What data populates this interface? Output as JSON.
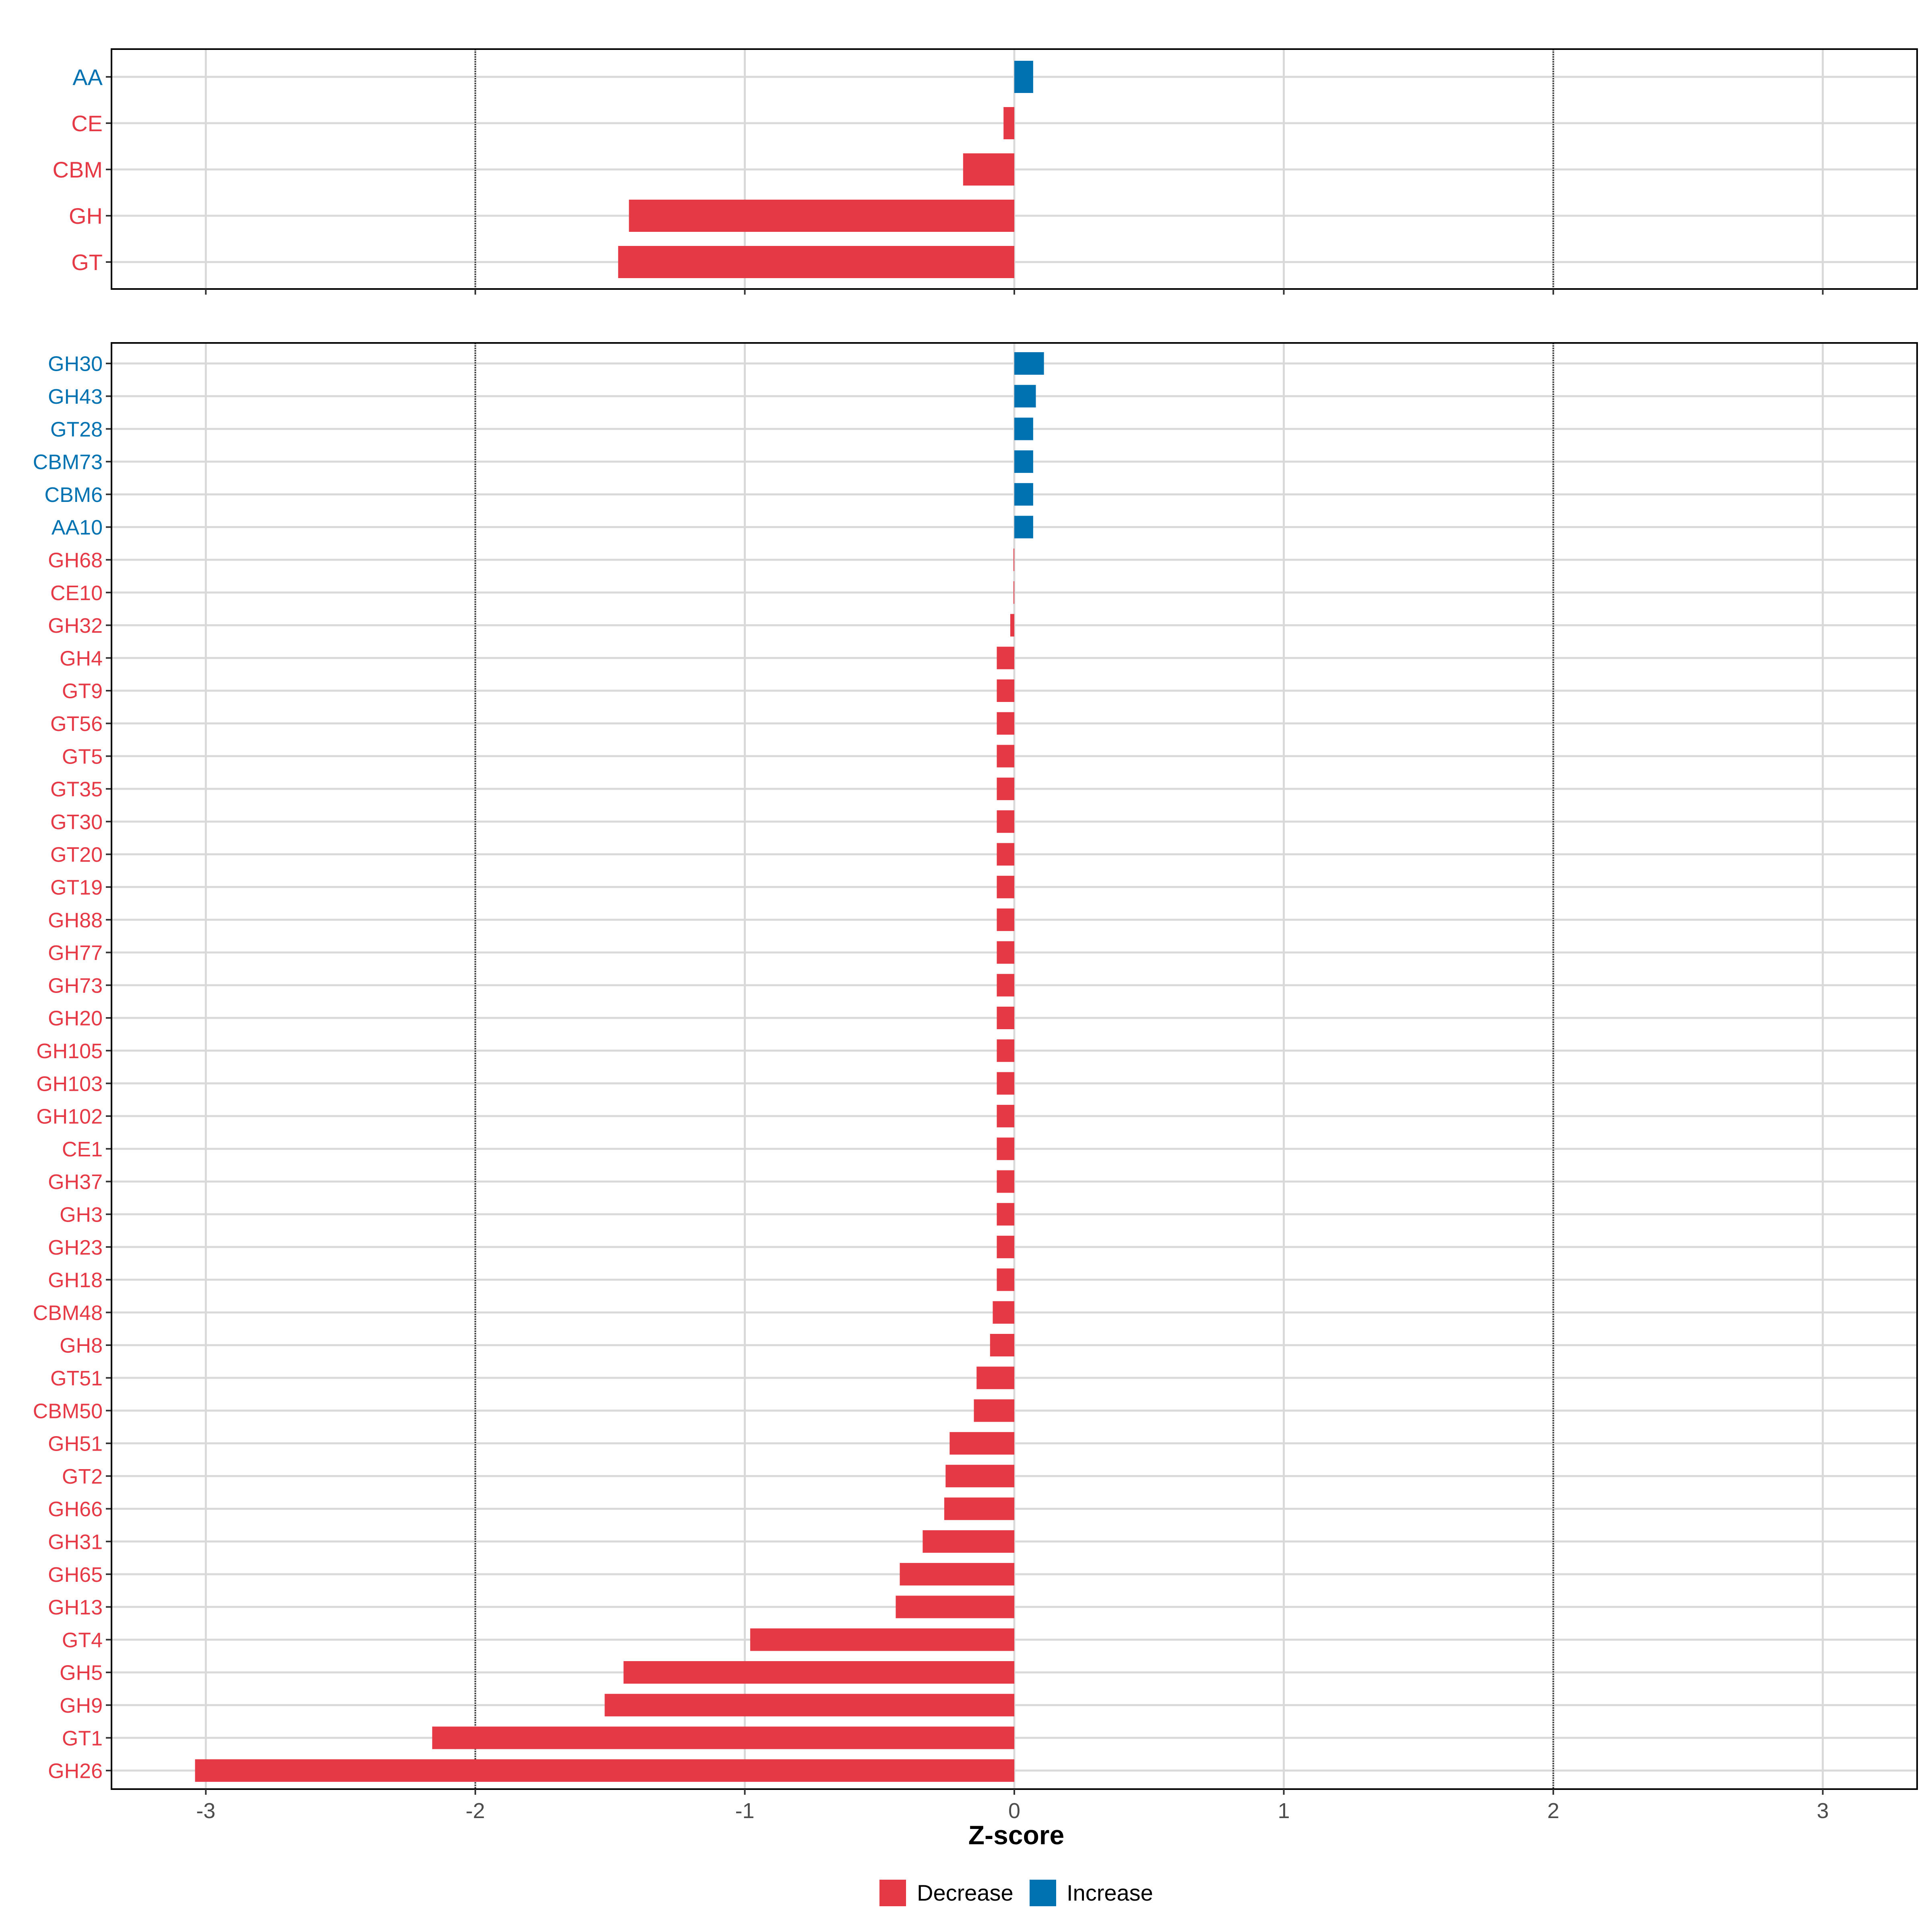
{
  "chart_data": {
    "type": "bar",
    "orientation": "horizontal",
    "xlabel": "Z-score",
    "xlim": [
      -3.35,
      3.35
    ],
    "xticks": [
      -3,
      -2,
      -1,
      0,
      1,
      2,
      3
    ],
    "xtick_labels": [
      "-3",
      "-2",
      "-1",
      "0",
      "1",
      "2",
      "3"
    ],
    "reference_lines": [
      -2,
      2
    ],
    "grid": true,
    "legend": {
      "position": "bottom",
      "entries": [
        {
          "name": "Decrease",
          "color": "#E63946"
        },
        {
          "name": "Increase",
          "color": "#0072B2"
        }
      ]
    },
    "colors": {
      "Decrease": "#E63946",
      "Increase": "#0072B2"
    },
    "panels": [
      {
        "name": "class",
        "categories": [
          "AA",
          "CE",
          "CBM",
          "GH",
          "GT"
        ],
        "values": [
          0.07,
          -0.04,
          -0.19,
          -1.43,
          -1.47
        ],
        "groups": [
          "Increase",
          "Decrease",
          "Decrease",
          "Decrease",
          "Decrease"
        ]
      },
      {
        "name": "family",
        "categories": [
          "GH30",
          "GH43",
          "GT28",
          "CBM73",
          "CBM6",
          "AA10",
          "GH68",
          "CE10",
          "GH32",
          "GH4",
          "GT9",
          "GT56",
          "GT5",
          "GT35",
          "GT30",
          "GT20",
          "GT19",
          "GH88",
          "GH77",
          "GH73",
          "GH20",
          "GH105",
          "GH103",
          "GH102",
          "CE1",
          "GH37",
          "GH3",
          "GH23",
          "GH18",
          "CBM48",
          "GH8",
          "GT51",
          "CBM50",
          "GH51",
          "GT2",
          "GH66",
          "GH31",
          "GH65",
          "GH13",
          "GT4",
          "GH5",
          "GH9",
          "GT1",
          "GH26"
        ],
        "values": [
          0.11,
          0.08,
          0.07,
          0.07,
          0.07,
          0.07,
          -0.003,
          -0.003,
          -0.015,
          -0.065,
          -0.065,
          -0.065,
          -0.065,
          -0.065,
          -0.065,
          -0.065,
          -0.065,
          -0.065,
          -0.065,
          -0.065,
          -0.065,
          -0.065,
          -0.065,
          -0.065,
          -0.065,
          -0.065,
          -0.065,
          -0.065,
          -0.065,
          -0.08,
          -0.09,
          -0.14,
          -0.15,
          -0.24,
          -0.255,
          -0.26,
          -0.34,
          -0.425,
          -0.44,
          -0.98,
          -1.45,
          -1.52,
          -2.16,
          -3.04
        ],
        "groups": [
          "Increase",
          "Increase",
          "Increase",
          "Increase",
          "Increase",
          "Increase",
          "Decrease",
          "Decrease",
          "Decrease",
          "Decrease",
          "Decrease",
          "Decrease",
          "Decrease",
          "Decrease",
          "Decrease",
          "Decrease",
          "Decrease",
          "Decrease",
          "Decrease",
          "Decrease",
          "Decrease",
          "Decrease",
          "Decrease",
          "Decrease",
          "Decrease",
          "Decrease",
          "Decrease",
          "Decrease",
          "Decrease",
          "Decrease",
          "Decrease",
          "Decrease",
          "Decrease",
          "Decrease",
          "Decrease",
          "Decrease",
          "Decrease",
          "Decrease",
          "Decrease",
          "Decrease",
          "Decrease",
          "Decrease",
          "Decrease",
          "Decrease"
        ]
      }
    ]
  }
}
